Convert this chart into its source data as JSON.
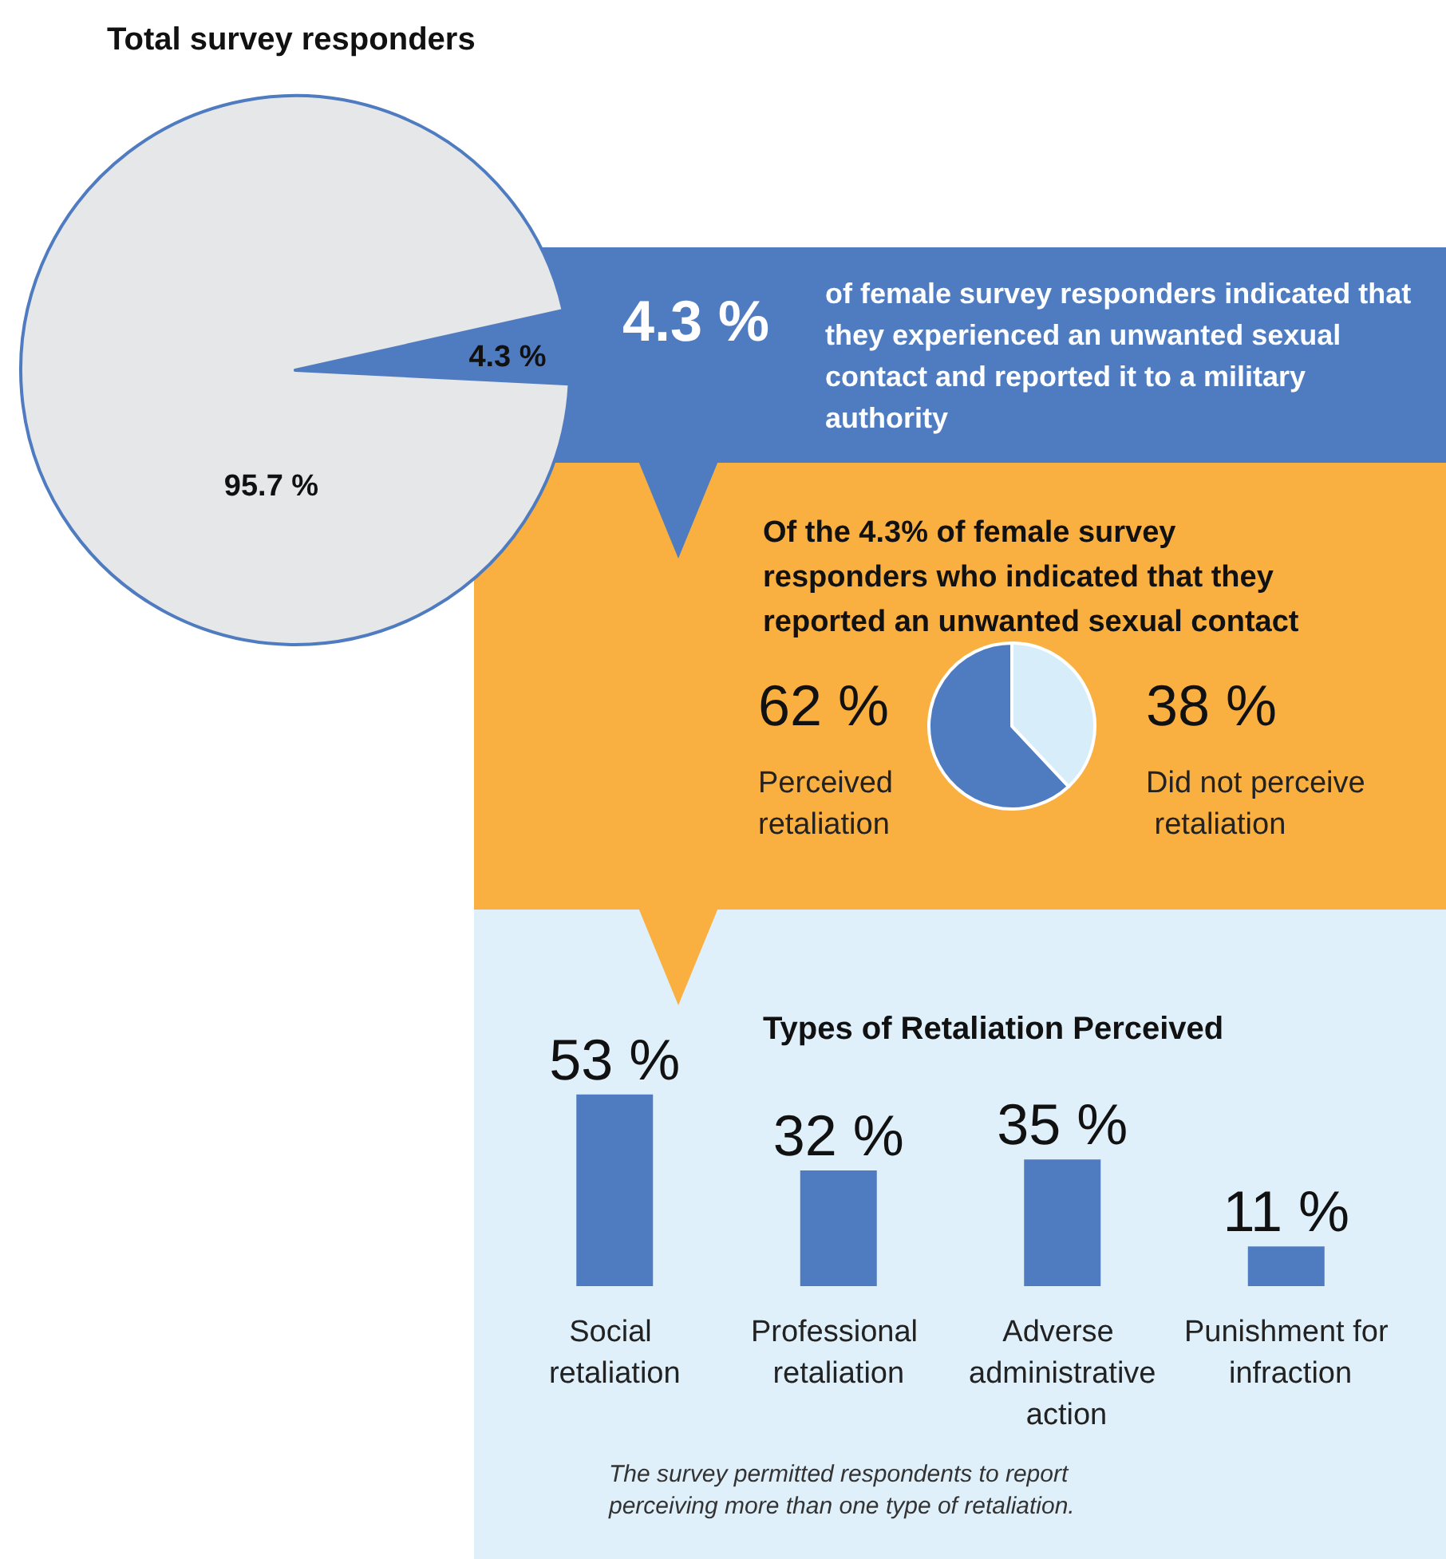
{
  "chart_data": [
    {
      "type": "pie",
      "title": "Total survey responders",
      "categories": [
        null,
        null
      ],
      "values": [
        4.3,
        95.7
      ],
      "colors": [
        "#4f7cc1",
        "#e6e7e9"
      ],
      "value_labels": [
        "4.3 %",
        "95.7 %"
      ],
      "annotations": [
        "4.3 %",
        "of female survey responders indicated that they experienced an unwanted sexual contact and reported it to a military authority"
      ]
    },
    {
      "type": "pie",
      "title": "Of the 4.3% of female survey responders who indicated that they reported an unwanted sexual contact",
      "categories": [
        "Perceived retaliation",
        "Did not perceive retaliation"
      ],
      "values": [
        62,
        38
      ],
      "colors": [
        "#4f7cc1",
        "#d7eefa"
      ],
      "value_labels": [
        "62 %",
        "38 %"
      ]
    },
    {
      "type": "bar",
      "title": "Types of Retaliation Perceived",
      "categories": [
        "Social retaliation",
        "Professional retaliation",
        "Adverse administrative action",
        "Punishment for infraction"
      ],
      "values": [
        53,
        32,
        35,
        11
      ],
      "color": "#4f7cc1",
      "value_labels": [
        "53 %",
        "32 %",
        "35 %",
        "11 %"
      ],
      "annotations": [
        "The survey permitted respondents to report perceiving more than one type of retaliation."
      ]
    }
  ]
}
